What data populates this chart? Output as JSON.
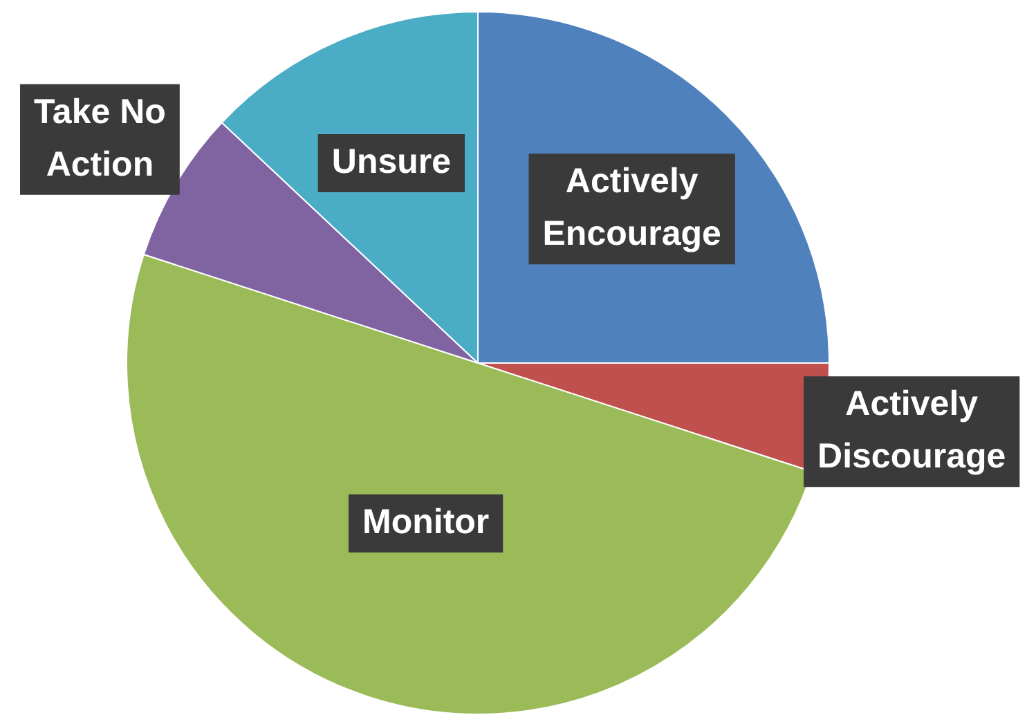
{
  "chart_data": {
    "type": "pie",
    "categories": [
      "Actively Encourage",
      "Actively Discourage",
      "Monitor",
      "Take No Action",
      "Unsure"
    ],
    "values": [
      25,
      5,
      50,
      7,
      13
    ],
    "colors": [
      "#4f81bd",
      "#c0504d",
      "#9bbb59",
      "#8064a2",
      "#4bacc6"
    ],
    "legend": false
  }
}
